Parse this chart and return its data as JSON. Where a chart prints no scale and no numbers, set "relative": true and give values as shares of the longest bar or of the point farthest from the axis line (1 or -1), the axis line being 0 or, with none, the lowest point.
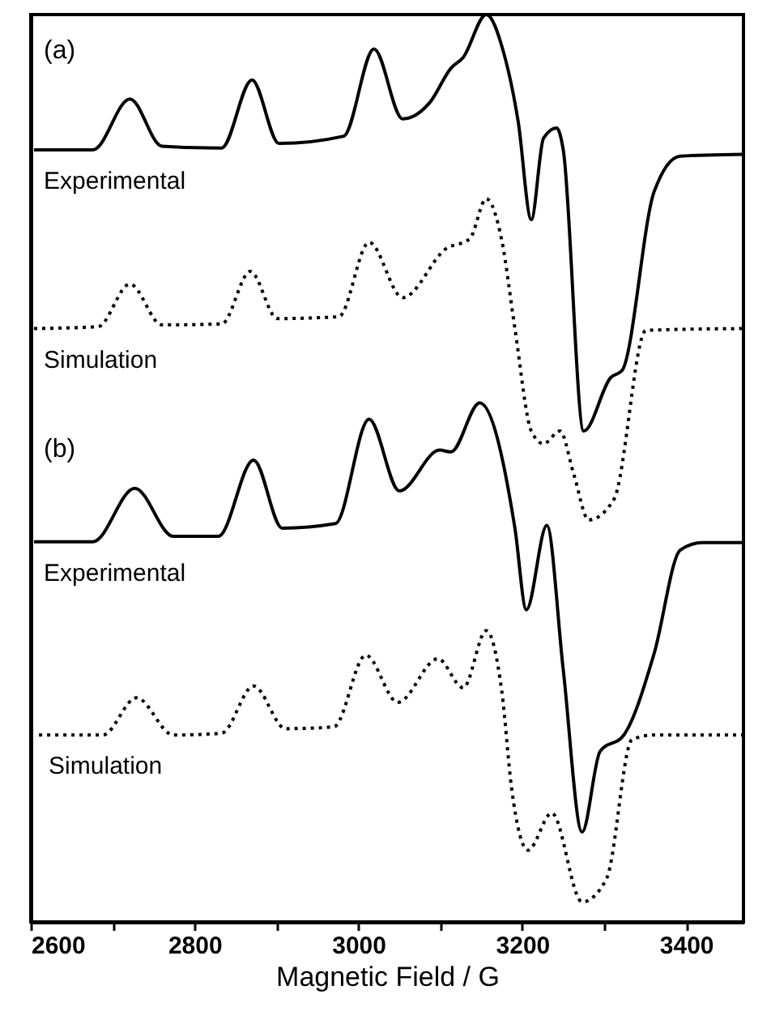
{
  "chart_data": {
    "type": "line",
    "relative": true,
    "xlabel": "Magnetic Field / G",
    "xlim": [
      2600,
      3470
    ],
    "xticks": [
      2600,
      {
        "value": 2700,
        "label": null
      },
      2800,
      {
        "value": 2900,
        "label": null
      },
      3000,
      {
        "value": 3100,
        "label": null
      },
      3200,
      {
        "value": 3300,
        "label": null
      },
      3400
    ],
    "tick_labels": "x",
    "grid": false,
    "marker": "none",
    "annotations": [
      "(a)",
      "(b)"
    ],
    "series": [
      {
        "name": "Experimental",
        "color": "#000000",
        "line_style": "solid",
        "x": [
          2604,
          2676,
          2721,
          2760,
          2833,
          2870,
          2903,
          2982,
          3019,
          3054,
          3087,
          3113,
          3128,
          3156,
          3177,
          3195,
          3211,
          3226,
          3242,
          3250,
          3275,
          3308,
          3322,
          3361,
          3393,
          3470
        ],
        "values": [
          0.851,
          0.851,
          0.907,
          0.855,
          0.853,
          0.928,
          0.858,
          0.866,
          0.962,
          0.885,
          0.903,
          0.941,
          0.953,
          1.0,
          0.959,
          0.882,
          0.774,
          0.864,
          0.875,
          0.851,
          0.541,
          0.6,
          0.608,
          0.805,
          0.844,
          0.846
        ]
      },
      {
        "name": "Simulation",
        "color": "#000000",
        "line_style": "dotted",
        "x": [
          2604,
          2682,
          2721,
          2760,
          2833,
          2868,
          2901,
          2976,
          3013,
          3054,
          3107,
          3136,
          3156,
          3175,
          3191,
          3211,
          3226,
          3246,
          3263,
          3281,
          3312,
          3351,
          3470
        ],
        "values": [
          0.654,
          0.656,
          0.703,
          0.658,
          0.659,
          0.717,
          0.665,
          0.667,
          0.749,
          0.688,
          0.742,
          0.753,
          0.797,
          0.751,
          0.654,
          0.541,
          0.527,
          0.541,
          0.493,
          0.443,
          0.466,
          0.652,
          0.654
        ]
      },
      {
        "name": "Experimental",
        "color": "#000000",
        "line_style": "solid",
        "x": [
          2604,
          2676,
          2727,
          2774,
          2829,
          2872,
          2907,
          2972,
          3013,
          3050,
          3099,
          3113,
          3148,
          3191,
          3205,
          3230,
          3250,
          3273,
          3295,
          3324,
          3361,
          3393,
          3420,
          3470
        ],
        "values": [
          0.419,
          0.419,
          0.478,
          0.425,
          0.425,
          0.509,
          0.434,
          0.439,
          0.554,
          0.475,
          0.52,
          0.518,
          0.572,
          0.434,
          0.344,
          0.437,
          0.278,
          0.099,
          0.188,
          0.206,
          0.296,
          0.41,
          0.418,
          0.418
        ]
      },
      {
        "name": "Simulation",
        "color": "#000000",
        "line_style": "dotted",
        "x": [
          2610,
          2688,
          2729,
          2774,
          2833,
          2872,
          2911,
          2970,
          3009,
          3048,
          3097,
          3128,
          3156,
          3175,
          3187,
          3207,
          3236,
          3273,
          3303,
          3334,
          3361,
          3470
        ],
        "values": [
          0.206,
          0.206,
          0.247,
          0.206,
          0.208,
          0.26,
          0.213,
          0.215,
          0.294,
          0.242,
          0.29,
          0.258,
          0.321,
          0.254,
          0.147,
          0.079,
          0.12,
          0.022,
          0.048,
          0.201,
          0.206,
          0.206
        ]
      }
    ]
  }
}
